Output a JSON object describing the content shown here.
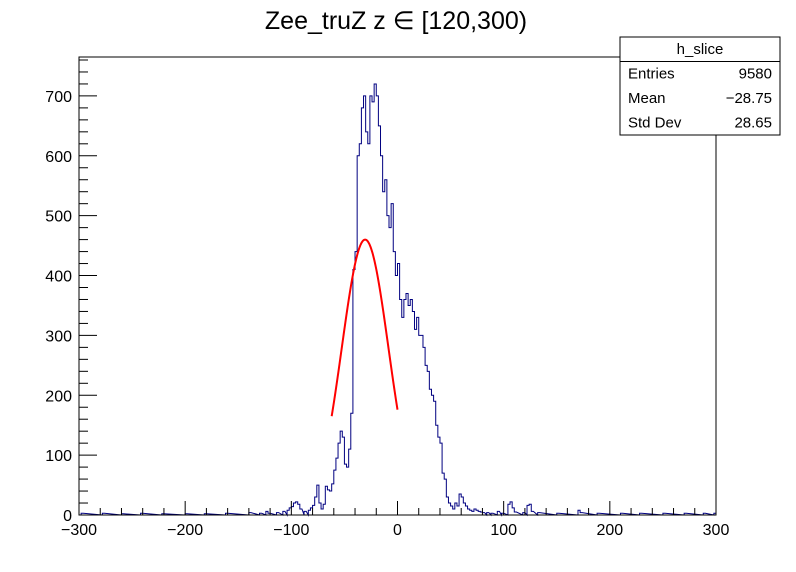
{
  "chart_data": {
    "type": "histogram",
    "title": "Zee_truZ z  ∈ [120,300)",
    "xlabel": "",
    "ylabel": "",
    "xlim": [
      -300,
      300
    ],
    "ylim": [
      0,
      765
    ],
    "x_ticks": [
      -300,
      -200,
      -100,
      0,
      100,
      200,
      300
    ],
    "x_tick_labels": [
      "−300",
      "−200",
      "−100",
      "0",
      "100",
      "200",
      "300"
    ],
    "y_ticks": [
      0,
      100,
      200,
      300,
      400,
      500,
      600,
      700
    ],
    "y_tick_labels": [
      "0",
      "100",
      "200",
      "300",
      "400",
      "500",
      "600",
      "700"
    ],
    "grid": false,
    "colors": {
      "histogram": "#000080",
      "fit": "#ff0000",
      "axis": "#000000"
    },
    "bin_width": 2,
    "points": [
      [
        -297,
        3
      ],
      [
        -277,
        3
      ],
      [
        -259,
        2
      ],
      [
        -241,
        3
      ],
      [
        -221,
        2
      ],
      [
        -199,
        2
      ],
      [
        -181,
        2
      ],
      [
        -161,
        3
      ],
      [
        -139,
        4
      ],
      [
        -129,
        3
      ],
      [
        -123,
        6
      ],
      [
        -121,
        3
      ],
      [
        -113,
        4
      ],
      [
        -107,
        6
      ],
      [
        -103,
        8
      ],
      [
        -101,
        12
      ],
      [
        -99,
        14
      ],
      [
        -97,
        20
      ],
      [
        -95,
        22
      ],
      [
        -93,
        18
      ],
      [
        -91,
        10
      ],
      [
        -87,
        6
      ],
      [
        -83,
        8
      ],
      [
        -81,
        12
      ],
      [
        -79,
        16
      ],
      [
        -77,
        30
      ],
      [
        -75,
        50
      ],
      [
        -73,
        20
      ],
      [
        -71,
        10
      ],
      [
        -69,
        18
      ],
      [
        -67,
        48
      ],
      [
        -65,
        42
      ],
      [
        -63,
        40
      ],
      [
        -61,
        52
      ],
      [
        -59,
        75
      ],
      [
        -57,
        95
      ],
      [
        -55,
        120
      ],
      [
        -53,
        140
      ],
      [
        -51,
        130
      ],
      [
        -49,
        85
      ],
      [
        -47,
        80
      ],
      [
        -45,
        110
      ],
      [
        -43,
        170
      ],
      [
        -41,
        410
      ],
      [
        -39,
        440
      ],
      [
        -37,
        600
      ],
      [
        -35,
        620
      ],
      [
        -33,
        680
      ],
      [
        -31,
        700
      ],
      [
        -29,
        640
      ],
      [
        -27,
        620
      ],
      [
        -25,
        700
      ],
      [
        -23,
        690
      ],
      [
        -21,
        720
      ],
      [
        -19,
        700
      ],
      [
        -17,
        650
      ],
      [
        -15,
        600
      ],
      [
        -13,
        540
      ],
      [
        -11,
        560
      ],
      [
        -9,
        500
      ],
      [
        -7,
        480
      ],
      [
        -5,
        520
      ],
      [
        -3,
        440
      ],
      [
        -1,
        400
      ],
      [
        1,
        420
      ],
      [
        3,
        360
      ],
      [
        5,
        330
      ],
      [
        7,
        360
      ],
      [
        9,
        370
      ],
      [
        11,
        350
      ],
      [
        13,
        360
      ],
      [
        15,
        340
      ],
      [
        17,
        310
      ],
      [
        19,
        330
      ],
      [
        21,
        300
      ],
      [
        23,
        300
      ],
      [
        25,
        280
      ],
      [
        27,
        250
      ],
      [
        29,
        240
      ],
      [
        31,
        210
      ],
      [
        33,
        200
      ],
      [
        35,
        190
      ],
      [
        37,
        150
      ],
      [
        39,
        130
      ],
      [
        41,
        120
      ],
      [
        43,
        70
      ],
      [
        45,
        60
      ],
      [
        47,
        30
      ],
      [
        49,
        20
      ],
      [
        51,
        15
      ],
      [
        53,
        10
      ],
      [
        55,
        20
      ],
      [
        57,
        15
      ],
      [
        59,
        35
      ],
      [
        61,
        30
      ],
      [
        63,
        20
      ],
      [
        65,
        15
      ],
      [
        67,
        10
      ],
      [
        69,
        8
      ],
      [
        71,
        6
      ],
      [
        73,
        10
      ],
      [
        75,
        8
      ],
      [
        77,
        6
      ],
      [
        79,
        5
      ],
      [
        81,
        4
      ],
      [
        85,
        4
      ],
      [
        89,
        3
      ],
      [
        95,
        6
      ],
      [
        99,
        3
      ],
      [
        105,
        18
      ],
      [
        107,
        22
      ],
      [
        109,
        12
      ],
      [
        111,
        5
      ],
      [
        119,
        4
      ],
      [
        123,
        16
      ],
      [
        125,
        18
      ],
      [
        127,
        6
      ],
      [
        133,
        4
      ],
      [
        151,
        3
      ],
      [
        171,
        8
      ],
      [
        173,
        4
      ],
      [
        189,
        3
      ],
      [
        211,
        3
      ],
      [
        229,
        3
      ],
      [
        251,
        3
      ],
      [
        271,
        3
      ],
      [
        289,
        3
      ],
      [
        299,
        3
      ]
    ],
    "fit": {
      "type": "gaussian",
      "constant": 460,
      "mean": -30.5,
      "sigma": 22,
      "range": [
        -62,
        0
      ]
    },
    "legend": "top-right",
    "stats": {
      "name": "h_slice",
      "rows": [
        {
          "label": "Entries",
          "value": "9580"
        },
        {
          "label": "Mean",
          "value": "−28.75"
        },
        {
          "label": "Std Dev",
          "value": "28.65"
        }
      ]
    }
  }
}
